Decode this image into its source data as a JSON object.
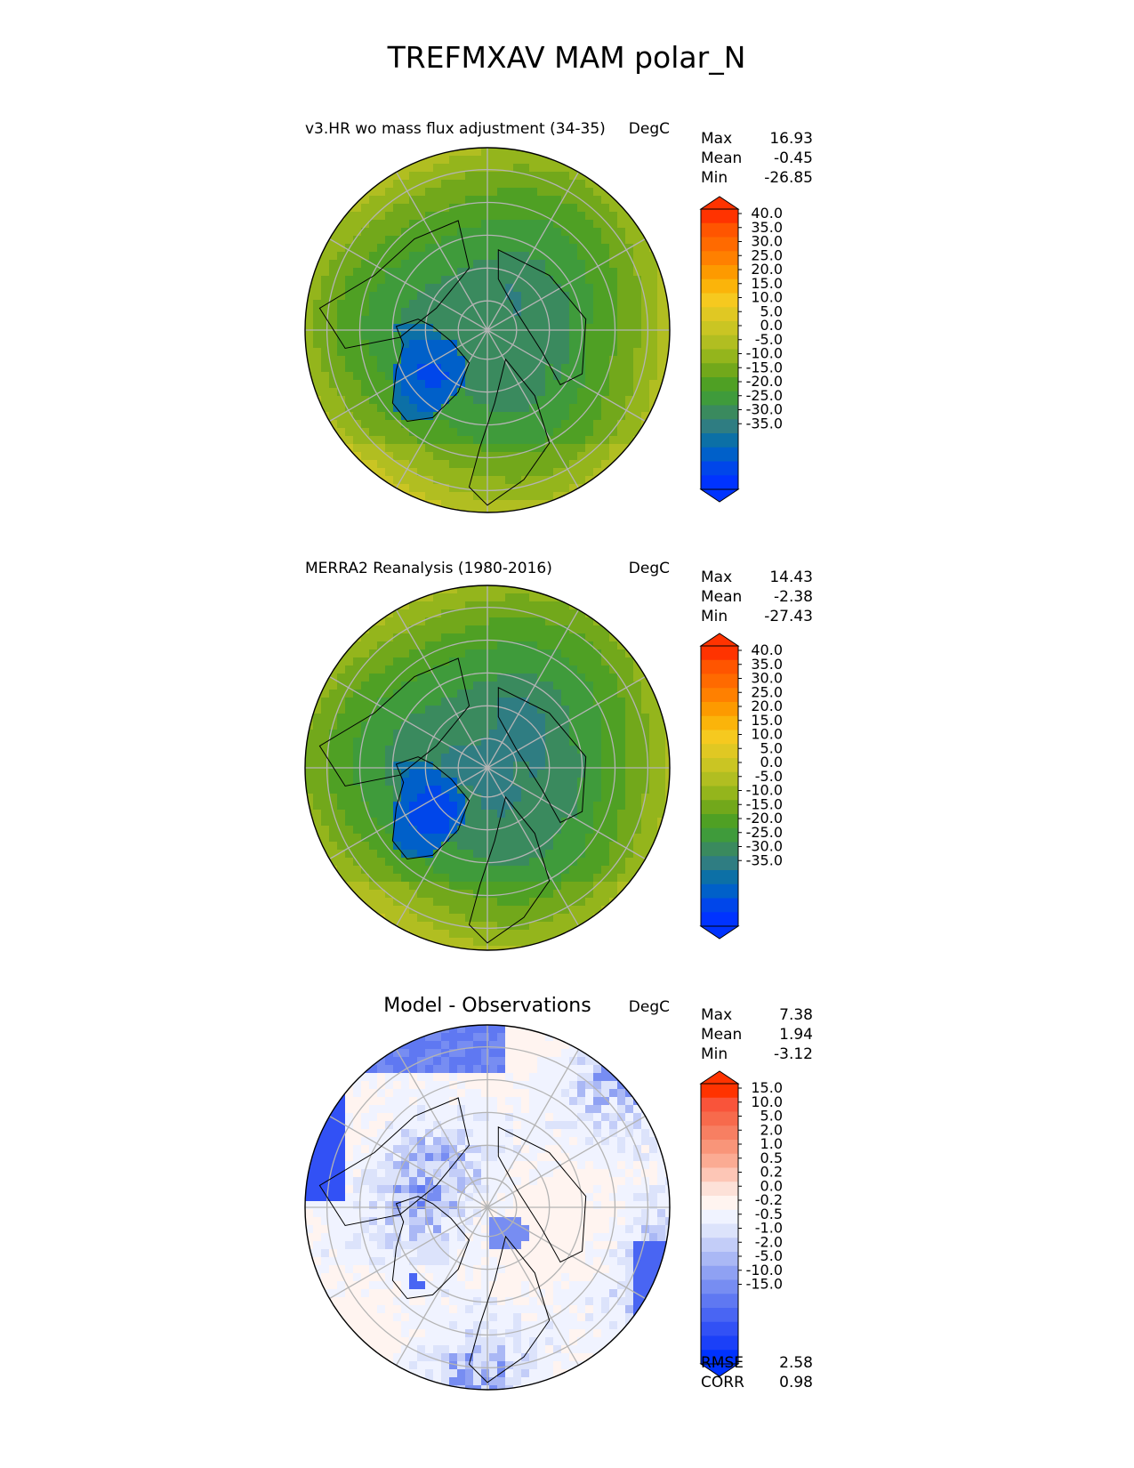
{
  "figure_title": "TREFMXAV MAM polar_N",
  "colors": {
    "grid": "#b4b4b4",
    "coast": "#000000"
  },
  "panels": [
    {
      "title": "v3.HR wo mass flux adjustment (34-35)",
      "units": "DegC",
      "stats": [
        {
          "label": "Max",
          "value": "16.93"
        },
        {
          "label": "Mean",
          "value": "-0.45"
        },
        {
          "label": "Min",
          "value": "-26.85"
        }
      ],
      "colorbar": {
        "ticks": [
          "40.0",
          "35.0",
          "30.0",
          "25.0",
          "20.0",
          "15.0",
          "10.0",
          "5.0",
          "0.0",
          "-5.0",
          "-10.0",
          "-15.0",
          "-20.0",
          "-25.0",
          "-30.0",
          "-35.0"
        ],
        "colors": [
          "#ff3300",
          "#ff5500",
          "#ff6a00",
          "#ff8000",
          "#fd9a00",
          "#fbb40a",
          "#f6c91f",
          "#e0c823",
          "#cac523",
          "#b1be21",
          "#94b51c",
          "#72a81b",
          "#4fa024",
          "#3f9b3b",
          "#3a8a5e",
          "#2f7d82",
          "#0c70a6",
          "#0060c9",
          "#0046ea",
          "#0033ff"
        ],
        "extend_top": "#ff3300",
        "extend_bottom": "#0033ff"
      },
      "field": {
        "kind": "abs",
        "bias": 0.0
      }
    },
    {
      "title": "MERRA2 Reanalysis (1980-2016)",
      "units": "DegC",
      "stats": [
        {
          "label": "Max",
          "value": "14.43"
        },
        {
          "label": "Mean",
          "value": "-2.38"
        },
        {
          "label": "Min",
          "value": "-27.43"
        }
      ],
      "colorbar": {
        "ticks": [
          "40.0",
          "35.0",
          "30.0",
          "25.0",
          "20.0",
          "15.0",
          "10.0",
          "5.0",
          "0.0",
          "-5.0",
          "-10.0",
          "-15.0",
          "-20.0",
          "-25.0",
          "-30.0",
          "-35.0"
        ],
        "colors": [
          "#ff3300",
          "#ff5500",
          "#ff6a00",
          "#ff8000",
          "#fd9a00",
          "#fbb40a",
          "#f6c91f",
          "#e0c823",
          "#cac523",
          "#b1be21",
          "#94b51c",
          "#72a81b",
          "#4fa024",
          "#3f9b3b",
          "#3a8a5e",
          "#2f7d82",
          "#0c70a6",
          "#0060c9",
          "#0046ea",
          "#0033ff"
        ],
        "extend_top": "#ff3300",
        "extend_bottom": "#0033ff"
      },
      "field": {
        "kind": "abs",
        "bias": -2.0
      }
    },
    {
      "title": "Model - Observations",
      "units": "DegC",
      "stats": [
        {
          "label": "Max",
          "value": "7.38"
        },
        {
          "label": "Mean",
          "value": "1.94"
        },
        {
          "label": "Min",
          "value": "-3.12"
        }
      ],
      "colorbar": {
        "ticks": [
          "15.0",
          "10.0",
          "5.0",
          "2.0",
          "1.0",
          "0.5",
          "0.2",
          "0.0",
          "-0.2",
          "-0.5",
          "-1.0",
          "-2.0",
          "-5.0",
          "-10.0",
          "-15.0"
        ],
        "colors": [
          "#ff3300",
          "#f9543a",
          "#f76a4c",
          "#f77f62",
          "#f99579",
          "#fbab93",
          "#fdc6b6",
          "#fde1d8",
          "#fff4f0",
          "#f0f3ff",
          "#dce3fb",
          "#c3cdf8",
          "#aab8f5",
          "#8fa1f3",
          "#778df2",
          "#5f78f2",
          "#4965f3",
          "#3251f5",
          "#1b40f8",
          "#0033ff"
        ],
        "extend_top": "#ff3300",
        "extend_bottom": "#0033ff"
      },
      "field": {
        "kind": "diff",
        "bias": 0.0
      },
      "metrics": [
        {
          "label": "RMSE",
          "value": "2.58"
        },
        {
          "label": "CORR",
          "value": "0.98"
        }
      ]
    }
  ]
}
